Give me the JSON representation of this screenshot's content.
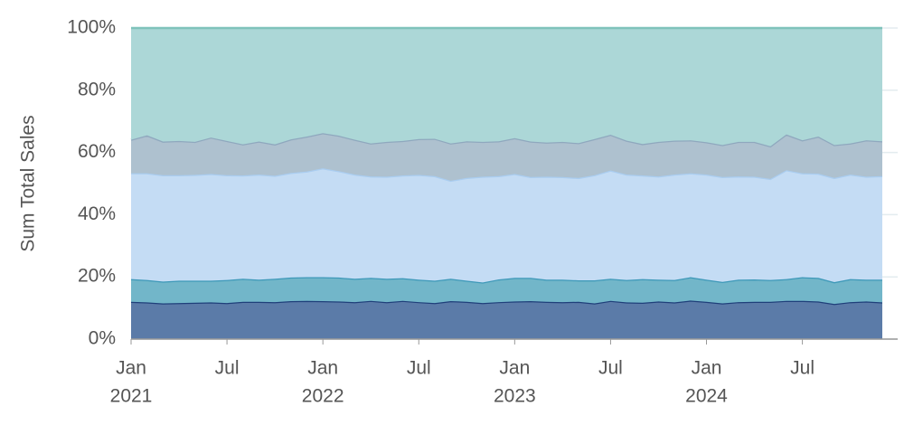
{
  "chart_data": {
    "type": "stacked_area",
    "y_label": "Sum Total Sales",
    "x": [
      "2021-01",
      "2021-02",
      "2021-03",
      "2021-04",
      "2021-05",
      "2021-06",
      "2021-07",
      "2021-08",
      "2021-09",
      "2021-10",
      "2021-11",
      "2021-12",
      "2022-01",
      "2022-02",
      "2022-03",
      "2022-04",
      "2022-05",
      "2022-06",
      "2022-07",
      "2022-08",
      "2022-09",
      "2022-10",
      "2022-11",
      "2022-12",
      "2023-01",
      "2023-02",
      "2023-03",
      "2023-04",
      "2023-05",
      "2023-06",
      "2023-07",
      "2023-08",
      "2023-09",
      "2023-10",
      "2023-11",
      "2023-12",
      "2024-01",
      "2024-02",
      "2024-03",
      "2024-04",
      "2024-05",
      "2024-06",
      "2024-07",
      "2024-08",
      "2024-09",
      "2024-10",
      "2024-11",
      "2024-12"
    ],
    "xticks": [
      {
        "value": "2021-01",
        "label": "Jan",
        "sublabel": "2021"
      },
      {
        "value": "2021-07",
        "label": "Jul"
      },
      {
        "value": "2022-01",
        "label": "Jan",
        "sublabel": "2022"
      },
      {
        "value": "2022-07",
        "label": "Jul"
      },
      {
        "value": "2023-01",
        "label": "Jan",
        "sublabel": "2023"
      },
      {
        "value": "2023-07",
        "label": "Jul"
      },
      {
        "value": "2024-01",
        "label": "Jan",
        "sublabel": "2024"
      },
      {
        "value": "2024-07",
        "label": "Jul"
      }
    ],
    "ylim": [
      0,
      100
    ],
    "yticks": [
      {
        "value": 0,
        "label": "0%"
      },
      {
        "value": 20,
        "label": "20%"
      },
      {
        "value": 40,
        "label": "40%"
      },
      {
        "value": 60,
        "label": "60%"
      },
      {
        "value": 80,
        "label": "80%"
      },
      {
        "value": 100,
        "label": "100%"
      }
    ],
    "grid": true,
    "series": [
      {
        "color": "#5b7ba8",
        "line_color": "#1f3f7a",
        "values": [
          12.0,
          11.8,
          11.5,
          11.6,
          11.7,
          11.8,
          11.6,
          12.0,
          12.0,
          11.9,
          12.2,
          12.3,
          12.2,
          12.1,
          11.9,
          12.3,
          11.9,
          12.3,
          11.9,
          11.6,
          12.2,
          12.0,
          11.6,
          11.9,
          12.1,
          12.2,
          12.0,
          11.9,
          12.0,
          11.5,
          12.3,
          11.8,
          11.7,
          12.1,
          11.8,
          12.4,
          12.0,
          11.5,
          11.9,
          12.0,
          12.0,
          12.3,
          12.3,
          12.1,
          11.3,
          11.9,
          12.1,
          11.8
        ]
      },
      {
        "color": "#72b6c9",
        "line_color": "#3d98b8",
        "values": [
          7.3,
          7.2,
          7.0,
          7.2,
          7.1,
          7.0,
          7.4,
          7.4,
          7.1,
          7.5,
          7.6,
          7.6,
          7.7,
          7.7,
          7.5,
          7.4,
          7.5,
          7.3,
          7.2,
          7.2,
          7.2,
          6.8,
          6.6,
          7.3,
          7.6,
          7.5,
          7.1,
          7.2,
          6.9,
          7.4,
          7.1,
          7.2,
          7.6,
          7.0,
          7.2,
          7.5,
          7.1,
          6.9,
          7.2,
          7.2,
          7.0,
          7.0,
          7.6,
          7.6,
          7.0,
          7.4,
          7.0,
          7.3
        ]
      },
      {
        "color": "#c4dcf4",
        "line_color": "#aacdf0",
        "values": [
          34.0,
          34.3,
          34.2,
          33.9,
          34.0,
          34.3,
          33.7,
          33.2,
          33.8,
          33.1,
          33.6,
          34.0,
          35.0,
          34.2,
          33.5,
          32.6,
          32.8,
          33.0,
          33.7,
          33.6,
          31.5,
          33.0,
          34.0,
          33.2,
          33.4,
          32.4,
          33.1,
          33.0,
          32.9,
          33.8,
          34.8,
          33.9,
          33.3,
          33.2,
          33.9,
          33.4,
          33.8,
          33.7,
          33.2,
          33.0,
          32.5,
          35.0,
          33.4,
          33.5,
          33.5,
          33.6,
          33.1,
          33.3
        ]
      },
      {
        "color": "#aec1cf",
        "line_color": "#8fa8be",
        "values": [
          10.8,
          12.2,
          10.8,
          11.0,
          10.6,
          11.7,
          11.0,
          10.0,
          10.6,
          10.1,
          10.8,
          11.2,
          11.3,
          11.4,
          11.2,
          10.6,
          11.2,
          11.1,
          11.5,
          12.0,
          12.0,
          11.8,
          11.2,
          11.2,
          11.5,
          11.4,
          11.0,
          11.3,
          11.2,
          11.6,
          11.5,
          10.9,
          10.1,
          11.1,
          10.9,
          10.6,
          10.4,
          10.3,
          11.1,
          11.2,
          10.5,
          11.5,
          10.6,
          11.9,
          10.6,
          10.0,
          11.7,
          11.2
        ]
      },
      {
        "color": "#acd7d7",
        "line_color": "#7fc3bb",
        "values": [
          35.9,
          34.5,
          36.5,
          36.3,
          36.6,
          35.2,
          36.3,
          37.4,
          36.5,
          37.4,
          35.8,
          34.9,
          33.8,
          34.6,
          35.9,
          37.1,
          36.6,
          36.3,
          35.7,
          35.6,
          37.1,
          36.4,
          36.6,
          36.4,
          35.4,
          36.5,
          36.8,
          36.6,
          37.0,
          35.7,
          34.3,
          36.2,
          37.3,
          36.6,
          36.2,
          36.1,
          36.7,
          37.6,
          36.6,
          36.6,
          38.0,
          34.2,
          36.1,
          34.9,
          37.6,
          37.1,
          36.1,
          36.4
        ]
      }
    ]
  }
}
